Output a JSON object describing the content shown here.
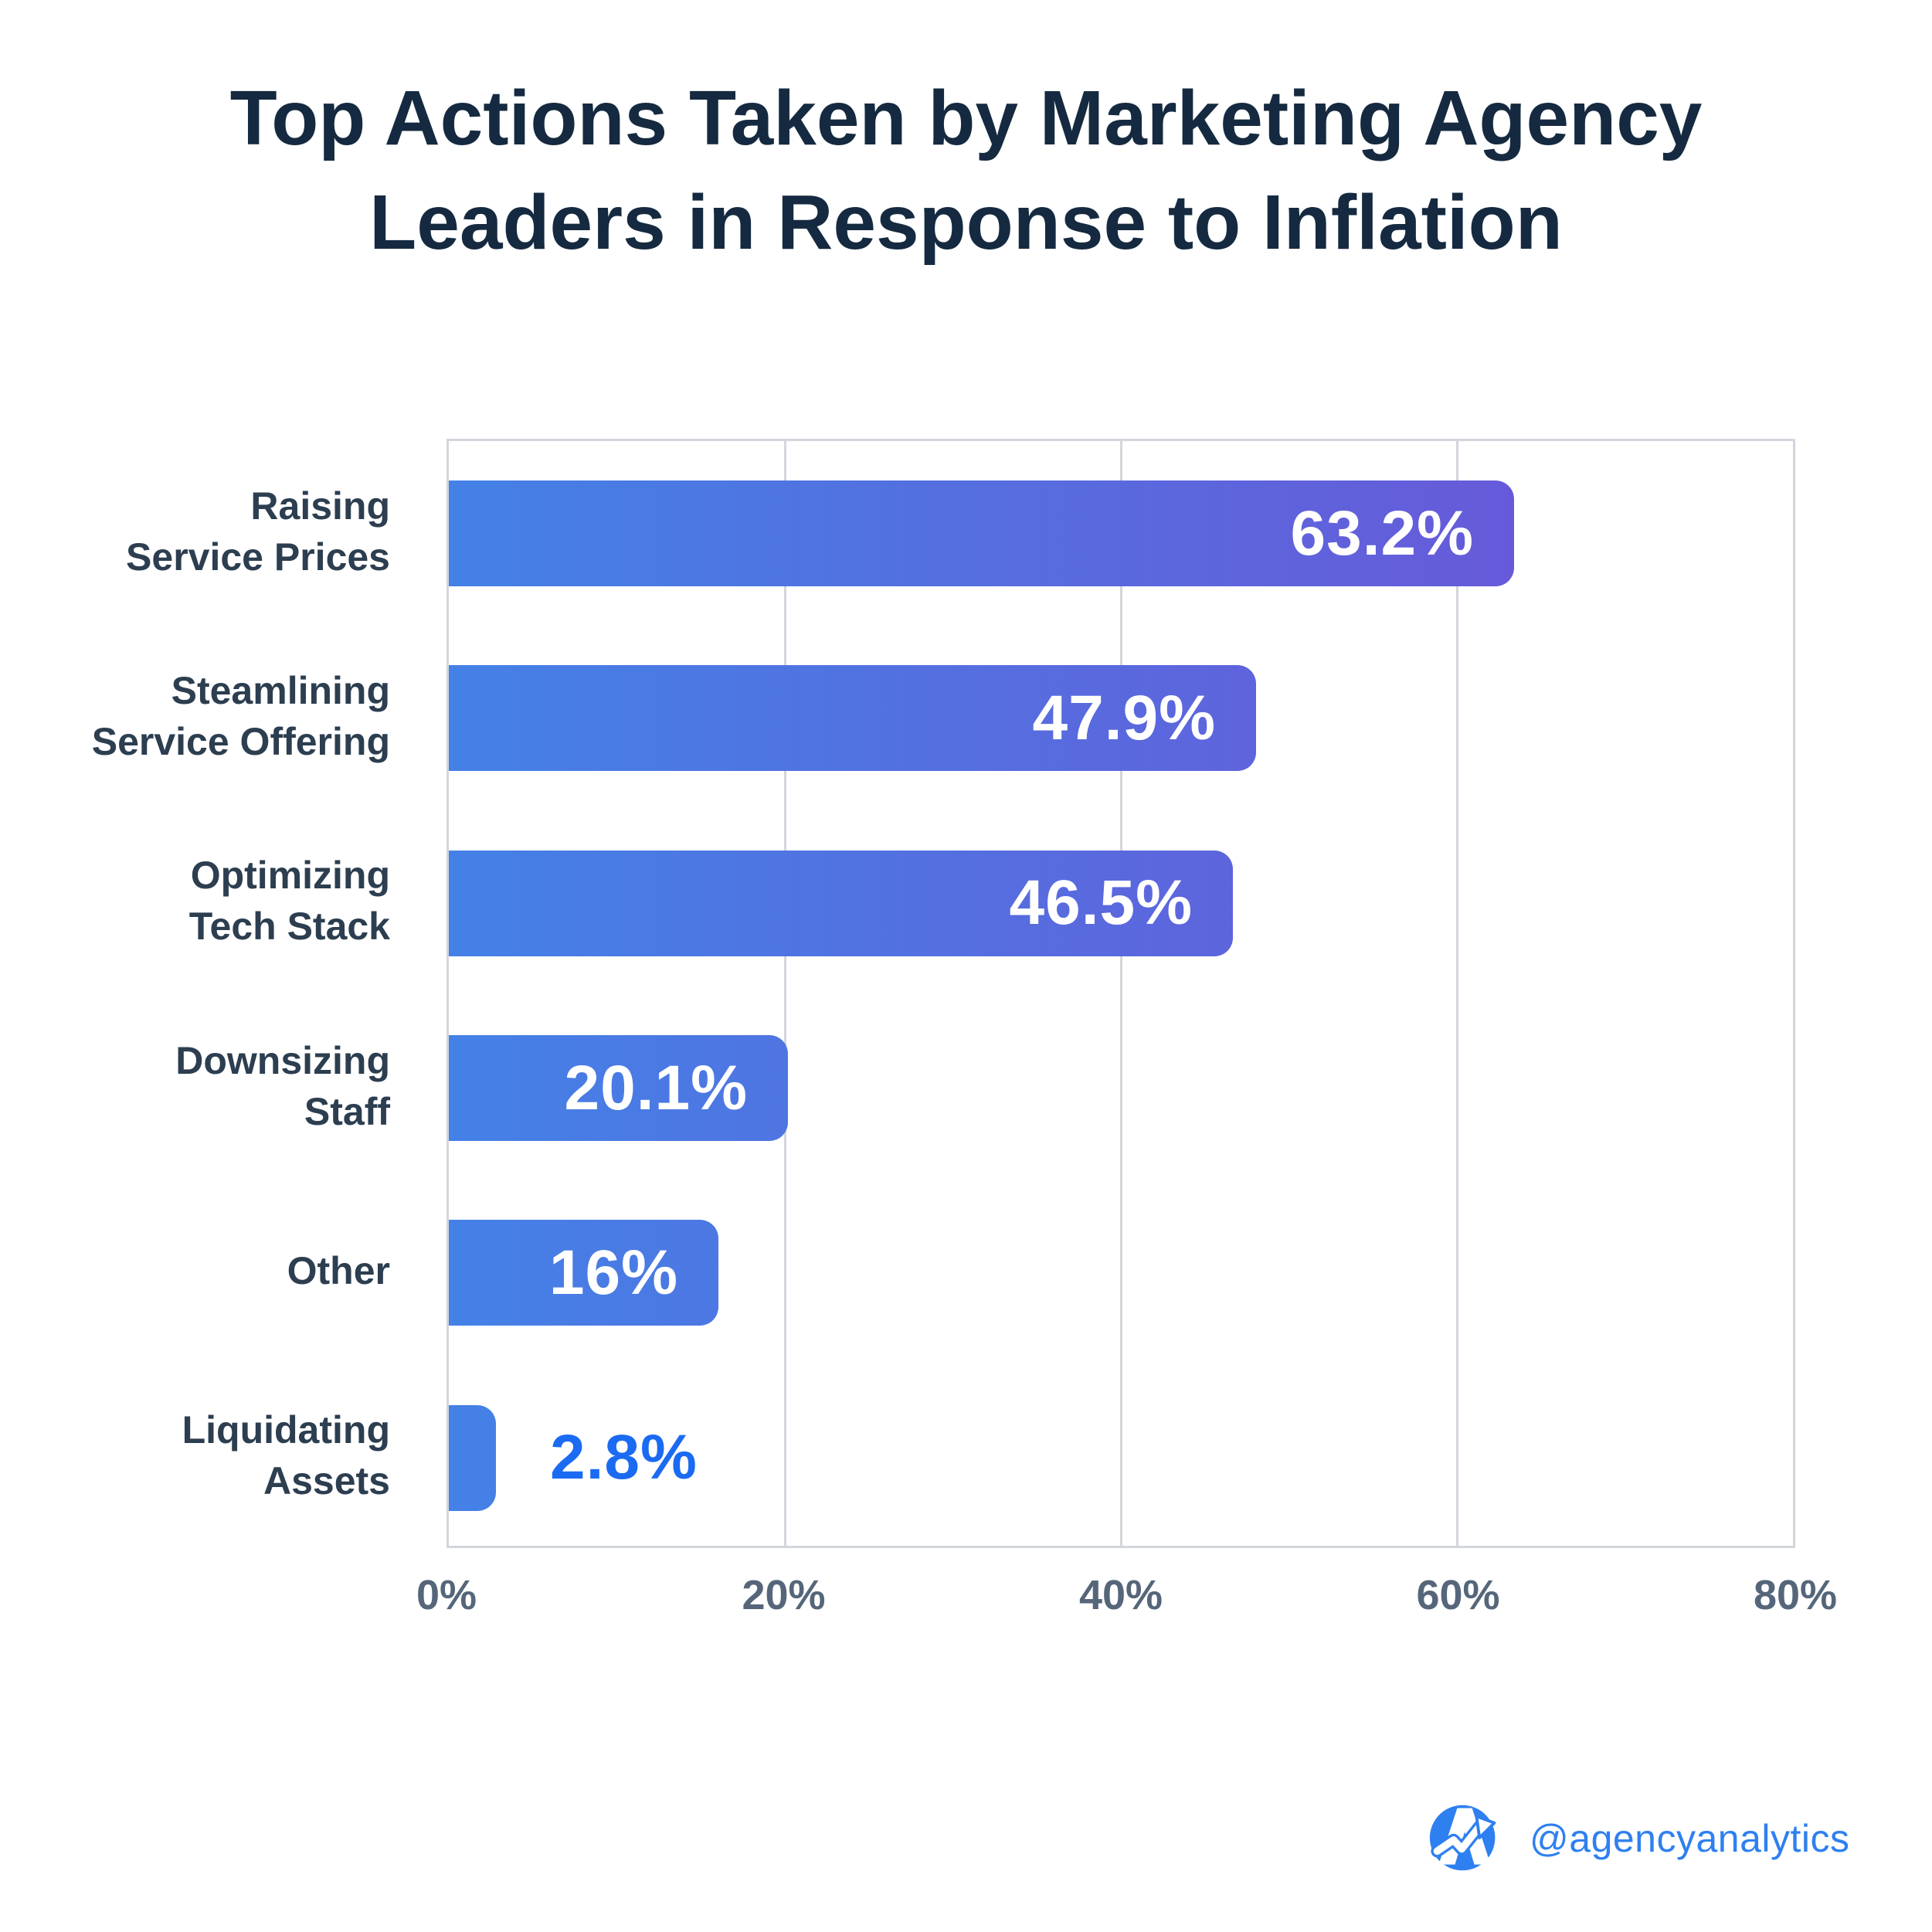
{
  "title": {
    "line1": "Top Actions Taken by Marketing Agency",
    "line2": "Leaders in Response to Inflation"
  },
  "chart_data": {
    "type": "bar",
    "orientation": "horizontal",
    "title": "Top Actions Taken by Marketing Agency Leaders in Response to Inflation",
    "categories": [
      "Raising\nService Prices",
      "Steamlining\nService Offering",
      "Optimizing\nTech Stack",
      "Downsizing\nStaff",
      "Other",
      "Liquidating\nAssets"
    ],
    "values": [
      63.2,
      47.9,
      46.5,
      20.1,
      16,
      2.8
    ],
    "value_labels": [
      "63.2%",
      "47.9%",
      "46.5%",
      "20.1%",
      "16%",
      "2.8%"
    ],
    "xlabel": "",
    "ylabel": "",
    "xlim": [
      0,
      80
    ],
    "x_ticks": [
      "0%",
      "20%",
      "40%",
      "60%",
      "80%"
    ],
    "grid": true,
    "legend": "none"
  },
  "footer": {
    "handle": "@agencyanalytics",
    "logo": "agencyanalytics-logo"
  },
  "colors": {
    "title_text": "#152A40",
    "category_text": "#2C3E50",
    "tick_text": "#56667A",
    "grid_line": "#d2d6dc",
    "bar_gradient_start": "#4481E6",
    "bar_gradient_end": "#7050D6",
    "value_inside_text": "#ffffff",
    "value_outside_text": "#1B6BF2",
    "brand_blue": "#2E80F0",
    "background": "#ffffff"
  }
}
